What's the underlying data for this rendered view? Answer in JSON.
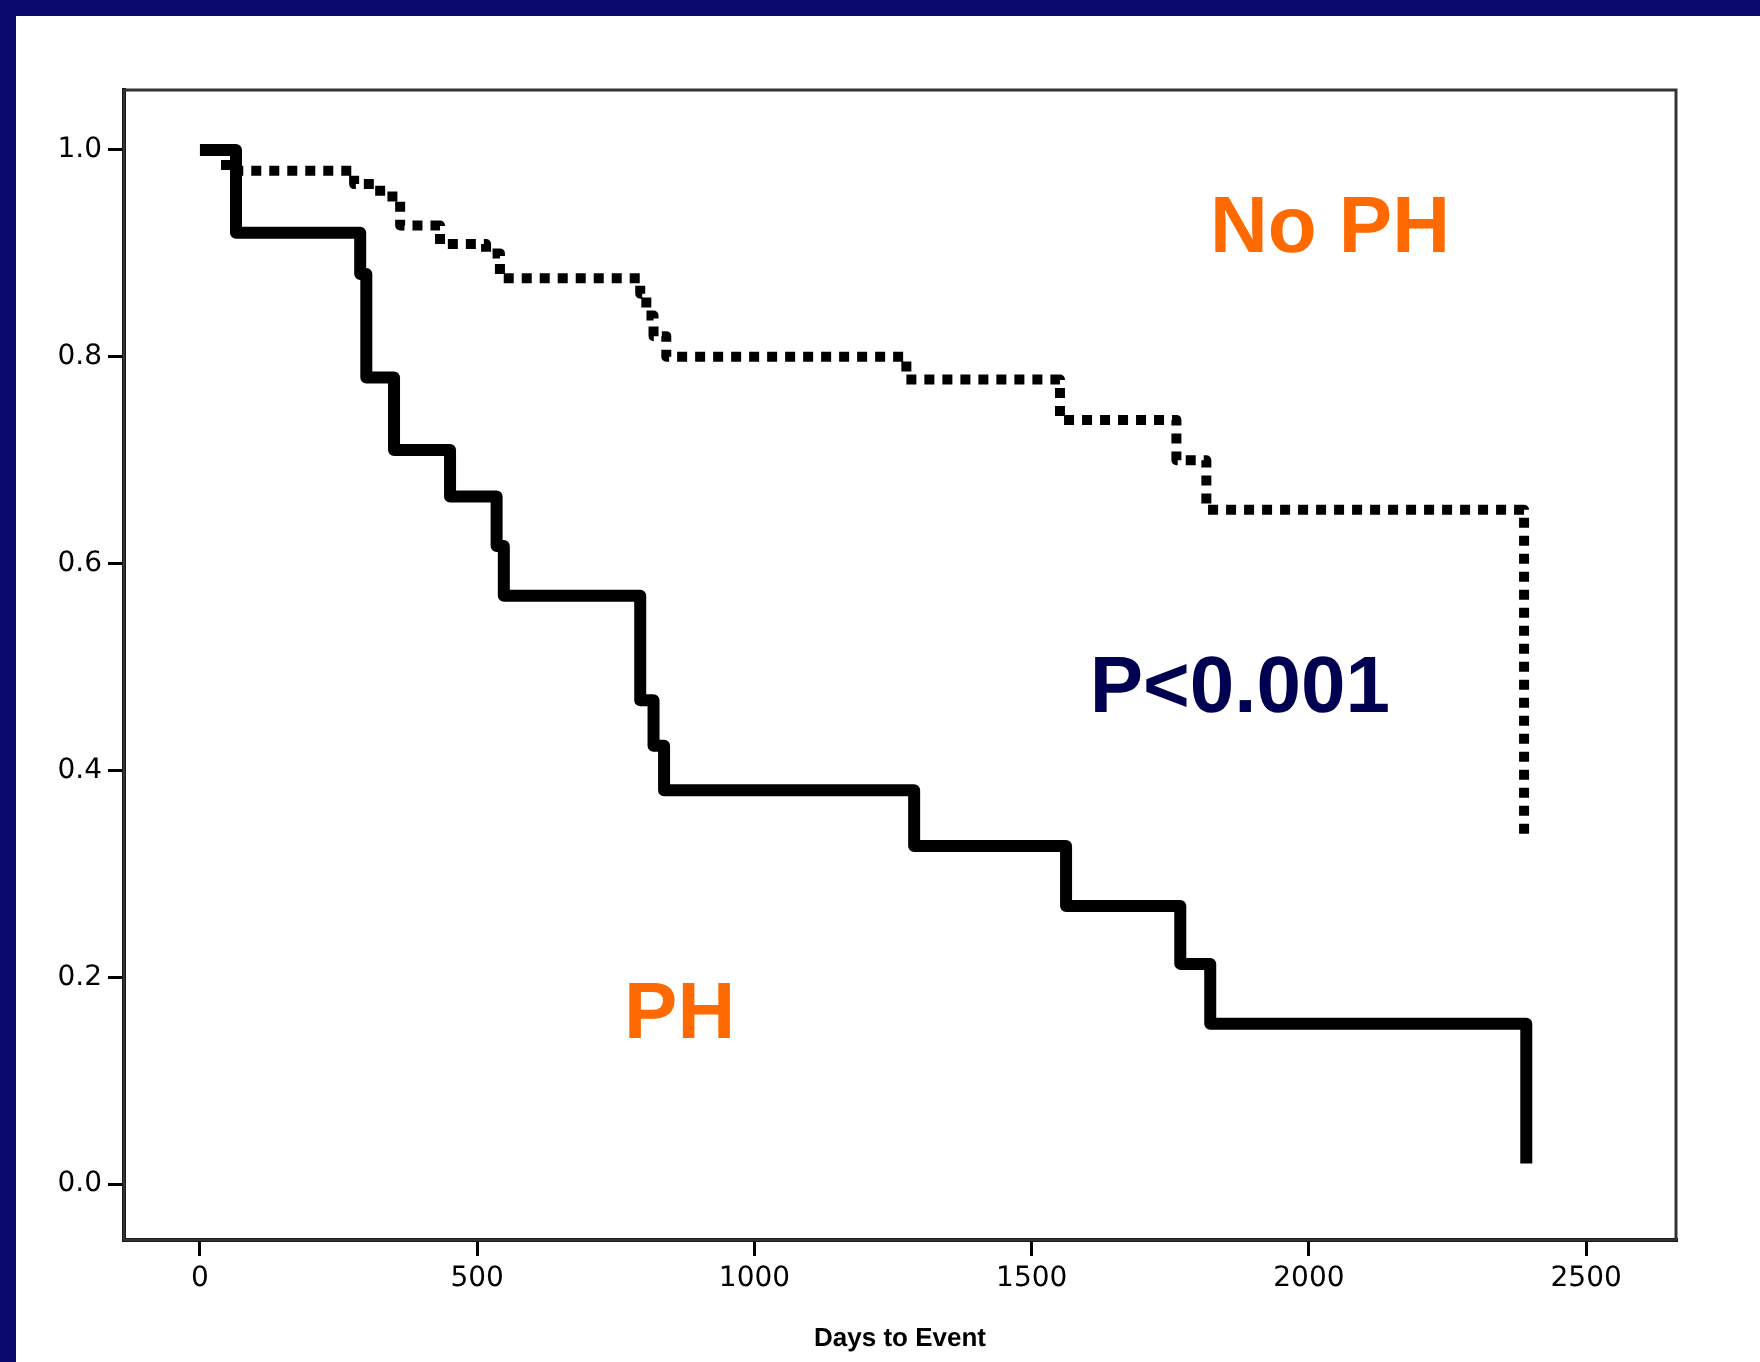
{
  "chart_data": {
    "type": "step",
    "xlabel": "Days to Event",
    "xlim": [
      -137,
      2662
    ],
    "xticks": [
      0,
      500,
      1000,
      1500,
      2000,
      2500
    ],
    "ylim": [
      -0.054,
      1.058
    ],
    "yticks": [
      {
        "value": 0,
        "label": "0.0"
      },
      {
        "value": 0.2,
        "label": "0.2"
      },
      {
        "value": 0.4,
        "label": "0.4"
      },
      {
        "value": 0.6,
        "label": "0.6"
      },
      {
        "value": 0.8,
        "label": "0.8"
      },
      {
        "value": 1,
        "label": "1.0"
      }
    ],
    "grid": false,
    "legend": false,
    "marker": "none",
    "annotations": [
      "P<0.001"
    ],
    "series": [
      {
        "name": "No PH",
        "color": "#000000",
        "line_style": "dashed",
        "x": [
          0,
          47,
          278,
          325,
          361,
          433,
          516,
          541,
          794,
          805,
          818,
          841,
          1274,
          1551,
          1761,
          1815,
          2388
        ],
        "values": [
          1.0,
          0.98,
          0.967,
          0.955,
          0.927,
          0.909,
          0.9,
          0.876,
          0.861,
          0.84,
          0.82,
          0.8,
          0.778,
          0.739,
          0.7,
          0.652,
          0.337
        ]
      },
      {
        "name": "PH",
        "color": "#000000",
        "line_style": "solid",
        "x": [
          0,
          65,
          289,
          300,
          350,
          451,
          535,
          548,
          794,
          818,
          837,
          1288,
          1562,
          1768,
          1822,
          2392
        ],
        "values": [
          1.0,
          0.92,
          0.88,
          0.78,
          0.71,
          0.665,
          0.617,
          0.569,
          0.468,
          0.424,
          0.381,
          0.327,
          0.269,
          0.213,
          0.155,
          0.02
        ]
      }
    ]
  }
}
